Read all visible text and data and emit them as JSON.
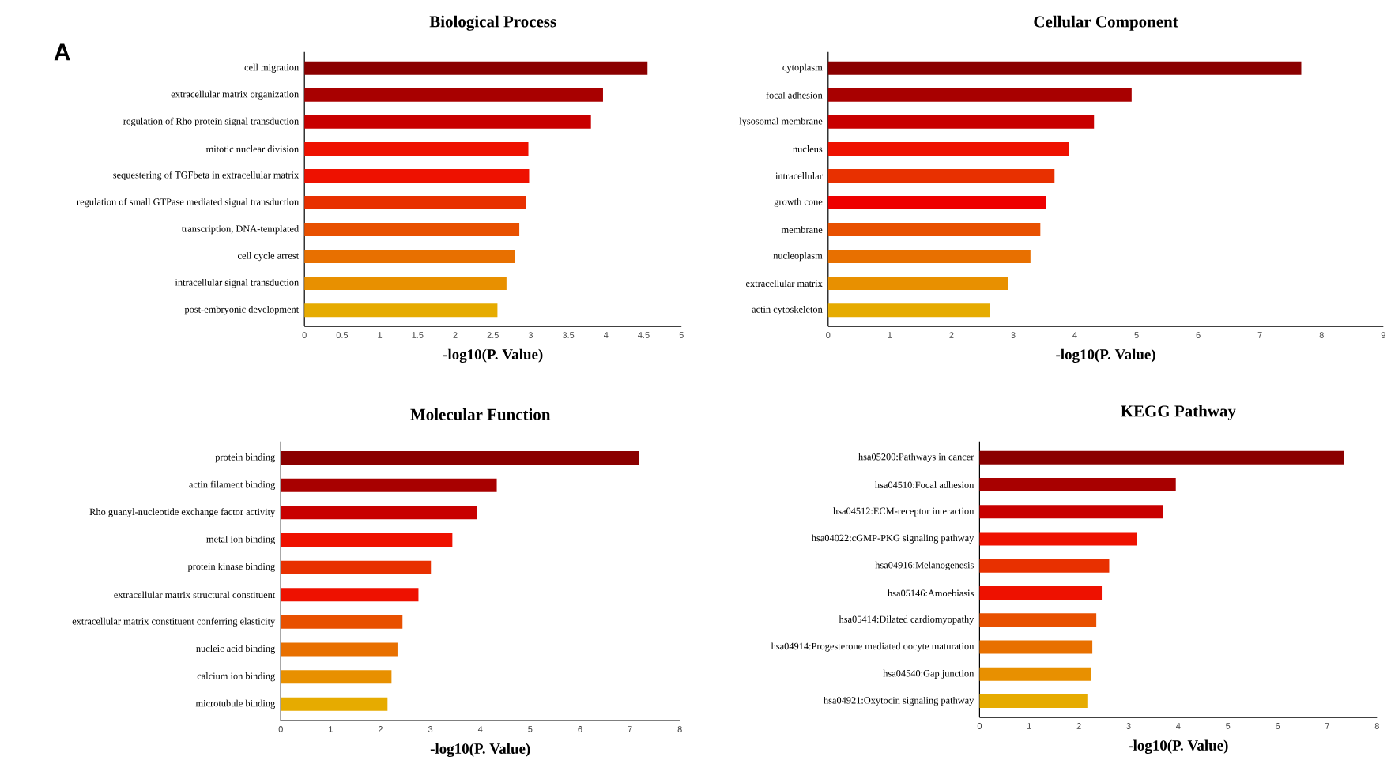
{
  "chart_data": [
    {
      "type": "bar",
      "orientation": "horizontal",
      "title": "Biological Process",
      "xlabel": "-log10(P. Value)",
      "annotations": [
        "A"
      ],
      "categories": [
        "cell migration",
        "extracellular matrix organization",
        "regulation of Rho protein signal transduction",
        "mitotic nuclear division",
        "sequestering of TGFbeta in extracellular matrix",
        "regulation of small GTPase mediated signal transduction",
        "transcription, DNA-templated",
        "cell cycle arrest",
        "intracellular signal transduction",
        "post-embryonic development"
      ],
      "values": [
        4.55,
        3.96,
        3.8,
        2.97,
        2.98,
        2.94,
        2.85,
        2.79,
        2.68,
        2.56
      ],
      "colors": [
        "#8b0000",
        "#a80000",
        "#c80000",
        "#ee1100",
        "#ee1100",
        "#e83000",
        "#e85000",
        "#e87000",
        "#e89000",
        "#e6ab00"
      ],
      "xlim": [
        0,
        5
      ],
      "xticks": [
        0,
        0.5,
        1,
        1.5,
        2,
        2.5,
        3,
        3.5,
        4,
        4.5,
        5
      ]
    },
    {
      "type": "bar",
      "orientation": "horizontal",
      "title": "Cellular Component",
      "xlabel": "-log10(P. Value)",
      "categories": [
        "cytoplasm",
        "focal adhesion",
        "lysosomal membrane",
        "nucleus",
        "intracellular",
        "growth cone",
        "membrane",
        "nucleoplasm",
        "extracellular matrix",
        "actin cytoskeleton"
      ],
      "values": [
        7.67,
        4.92,
        4.31,
        3.9,
        3.67,
        3.53,
        3.44,
        3.28,
        2.92,
        2.62
      ],
      "colors": [
        "#8b0000",
        "#a80000",
        "#c80000",
        "#ee1100",
        "#e83000",
        "#ee0000",
        "#e85000",
        "#e87000",
        "#e89000",
        "#e6ab00"
      ],
      "xlim": [
        0,
        9
      ],
      "xticks": [
        0,
        1,
        2,
        3,
        4,
        5,
        6,
        7,
        8,
        9
      ]
    },
    {
      "type": "bar",
      "orientation": "horizontal",
      "title": "Molecular Function",
      "xlabel": "-log10(P. Value)",
      "categories": [
        "protein binding",
        "actin filament binding",
        "Rho guanyl-nucleotide exchange factor activity",
        "metal ion binding",
        "protein kinase binding",
        "extracellular matrix structural constituent",
        "extracellular matrix constituent conferring elasticity",
        "nucleic acid binding",
        "calcium ion binding",
        "microtubule binding"
      ],
      "values": [
        7.18,
        4.33,
        3.94,
        3.44,
        3.01,
        2.76,
        2.44,
        2.34,
        2.22,
        2.14
      ],
      "colors": [
        "#8b0000",
        "#a80000",
        "#c80000",
        "#ee1100",
        "#e83000",
        "#ee1100",
        "#e85000",
        "#e87000",
        "#e89000",
        "#e6ab00"
      ],
      "xlim": [
        0,
        8
      ],
      "xticks": [
        0,
        1,
        2,
        3,
        4,
        5,
        6,
        7,
        8
      ]
    },
    {
      "type": "bar",
      "orientation": "horizontal",
      "title": "KEGG Pathway",
      "xlabel": "-log10(P. Value)",
      "categories": [
        "hsa05200:Pathways in cancer",
        "hsa04510:Focal adhesion",
        "hsa04512:ECM-receptor interaction",
        "hsa04022:cGMP-PKG signaling pathway",
        "hsa04916:Melanogenesis",
        "hsa05146:Amoebiasis",
        "hsa05414:Dilated cardiomyopathy",
        "hsa04914:Progesterone mediated oocyte maturation",
        "hsa04540:Gap junction",
        "hsa04921:Oxytocin signaling pathway"
      ],
      "values": [
        7.33,
        3.95,
        3.7,
        3.17,
        2.61,
        2.46,
        2.35,
        2.27,
        2.24,
        2.17
      ],
      "colors": [
        "#8b0000",
        "#a80000",
        "#c80000",
        "#ee1100",
        "#e83000",
        "#ee1100",
        "#e85000",
        "#e87000",
        "#e89000",
        "#e6ab00"
      ],
      "xlim": [
        0,
        8
      ],
      "xticks": [
        0,
        1,
        2,
        3,
        4,
        5,
        6,
        7,
        8
      ]
    }
  ]
}
